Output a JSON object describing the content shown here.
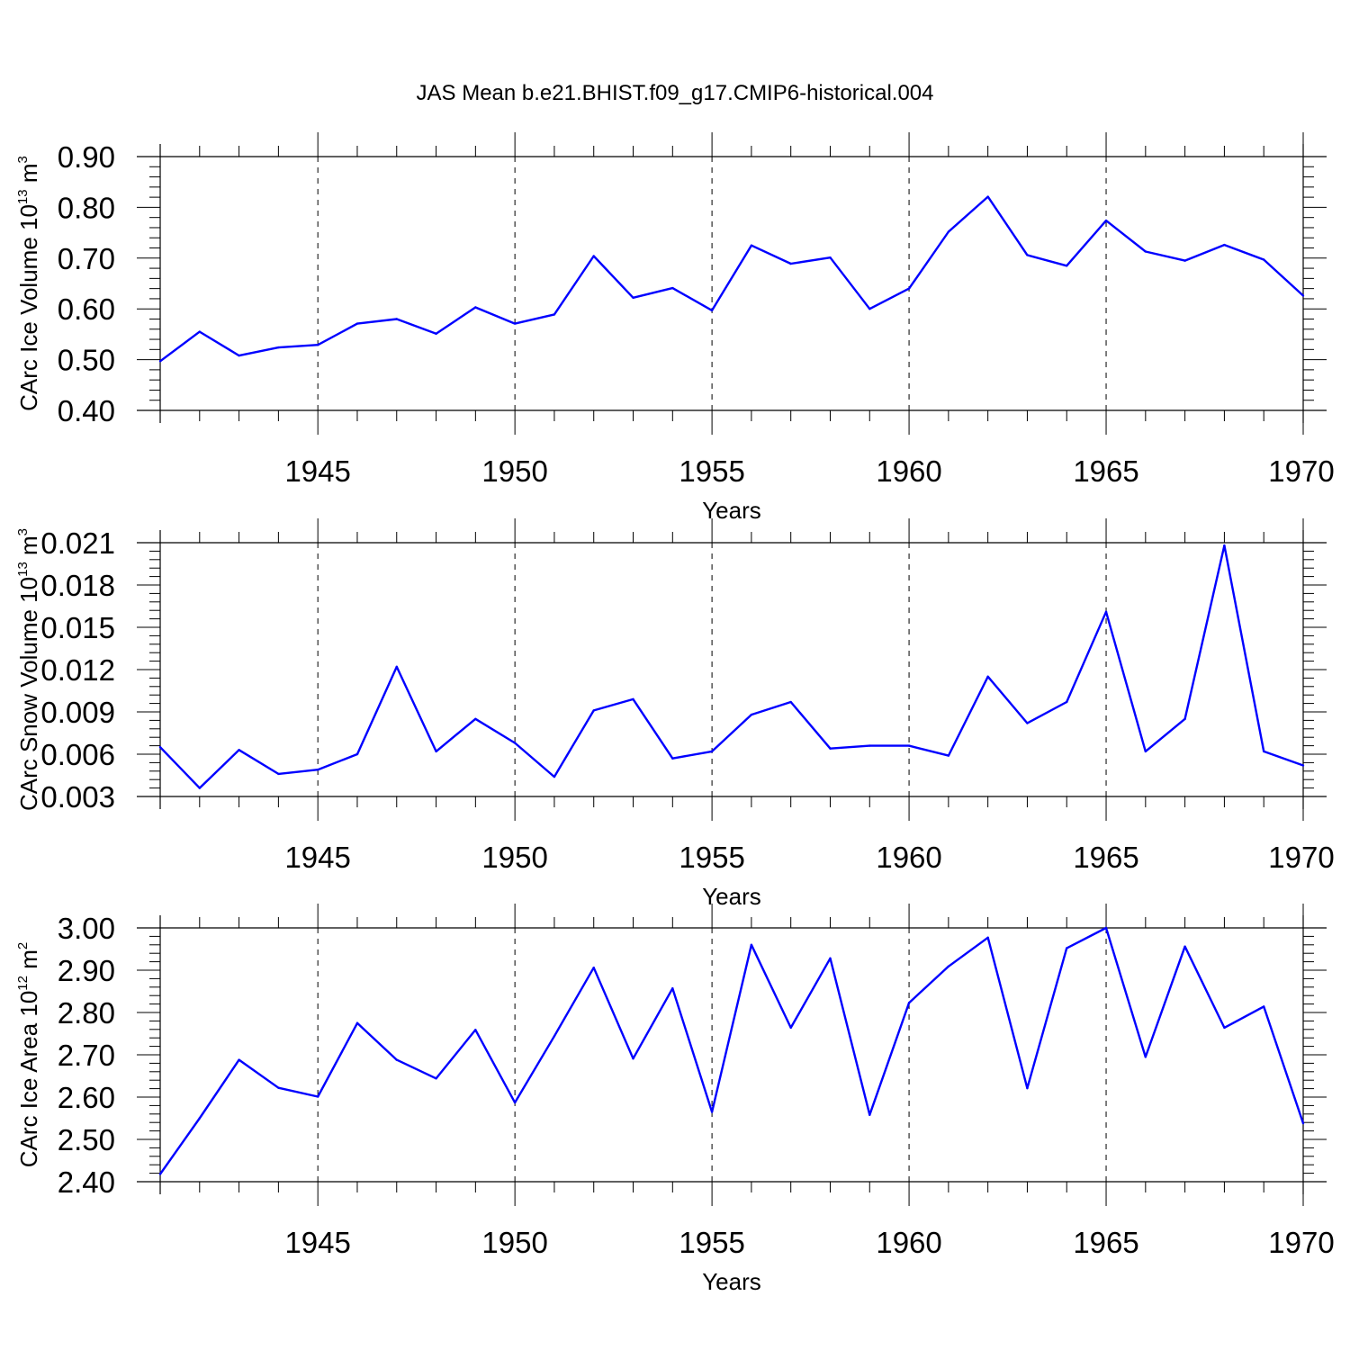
{
  "figure_title": "JAS Mean b.e21.BHIST.f09_g17.CMIP6-historical.004",
  "line_color": "#0000ff",
  "chart_data": [
    {
      "type": "line",
      "ylabel": "CArc Ice Volume 10",
      "ylabel_exp": "13",
      "ylabel_unit": " m",
      "ylabel_unit_exp": "3",
      "xlabel": "Years",
      "xlim": [
        1941,
        1970
      ],
      "ylim": [
        0.4,
        0.9
      ],
      "yticks": [
        "0.40",
        "0.50",
        "0.60",
        "0.70",
        "0.80",
        "0.90"
      ],
      "xtick_labels": [
        "1945",
        "1950",
        "1955",
        "1960",
        "1965",
        "1970"
      ],
      "x": [
        1941,
        1942,
        1943,
        1944,
        1945,
        1946,
        1947,
        1948,
        1949,
        1950,
        1951,
        1952,
        1953,
        1954,
        1955,
        1956,
        1957,
        1958,
        1959,
        1960,
        1961,
        1962,
        1963,
        1964,
        1965,
        1966,
        1967,
        1968,
        1969,
        1970
      ],
      "values": [
        0.497,
        0.555,
        0.508,
        0.524,
        0.529,
        0.571,
        0.58,
        0.551,
        0.603,
        0.571,
        0.589,
        0.704,
        0.622,
        0.641,
        0.597,
        0.725,
        0.689,
        0.701,
        0.6,
        0.64,
        0.752,
        0.821,
        0.706,
        0.685,
        0.774,
        0.713,
        0.695,
        0.726,
        0.697,
        0.626
      ]
    },
    {
      "type": "line",
      "ylabel": "CArc Snow Volume 10",
      "ylabel_exp": "13",
      "ylabel_unit": " m",
      "ylabel_unit_exp": "3",
      "xlabel": "Years",
      "xlim": [
        1941,
        1970
      ],
      "ylim": [
        0.003,
        0.021
      ],
      "yticks": [
        "0.003",
        "0.006",
        "0.009",
        "0.012",
        "0.015",
        "0.018",
        "0.021"
      ],
      "xtick_labels": [
        "1945",
        "1950",
        "1955",
        "1960",
        "1965",
        "1970"
      ],
      "x": [
        1941,
        1942,
        1943,
        1944,
        1945,
        1946,
        1947,
        1948,
        1949,
        1950,
        1951,
        1952,
        1953,
        1954,
        1955,
        1956,
        1957,
        1958,
        1959,
        1960,
        1961,
        1962,
        1963,
        1964,
        1965,
        1966,
        1967,
        1968,
        1969,
        1970
      ],
      "values": [
        0.0065,
        0.0036,
        0.0063,
        0.0046,
        0.0049,
        0.006,
        0.0122,
        0.0062,
        0.0085,
        0.0068,
        0.0044,
        0.0091,
        0.0099,
        0.0057,
        0.0062,
        0.0088,
        0.0097,
        0.0064,
        0.0066,
        0.0066,
        0.0059,
        0.0115,
        0.0082,
        0.0097,
        0.0161,
        0.0062,
        0.0085,
        0.0208,
        0.0062,
        0.0052
      ]
    },
    {
      "type": "line",
      "ylabel": "CArc Ice Area 10",
      "ylabel_exp": "12",
      "ylabel_unit": " m",
      "ylabel_unit_exp": "2",
      "xlabel": "Years",
      "xlim": [
        1941,
        1970
      ],
      "ylim": [
        2.4,
        3.0
      ],
      "yticks": [
        "2.40",
        "2.50",
        "2.60",
        "2.70",
        "2.80",
        "2.90",
        "3.00"
      ],
      "xtick_labels": [
        "1945",
        "1950",
        "1955",
        "1960",
        "1965",
        "1970"
      ],
      "x": [
        1941,
        1942,
        1943,
        1944,
        1945,
        1946,
        1947,
        1948,
        1949,
        1950,
        1951,
        1952,
        1953,
        1954,
        1955,
        1956,
        1957,
        1958,
        1959,
        1960,
        1961,
        1962,
        1963,
        1964,
        1965,
        1966,
        1967,
        1968,
        1969,
        1970
      ],
      "values": [
        2.418,
        2.55,
        2.688,
        2.622,
        2.601,
        2.775,
        2.688,
        2.644,
        2.759,
        2.587,
        2.744,
        2.906,
        2.691,
        2.857,
        2.565,
        2.96,
        2.764,
        2.928,
        2.558,
        2.823,
        2.909,
        2.977,
        2.621,
        2.952,
        3.0,
        2.695,
        2.956,
        2.764,
        2.814,
        2.538
      ]
    }
  ]
}
